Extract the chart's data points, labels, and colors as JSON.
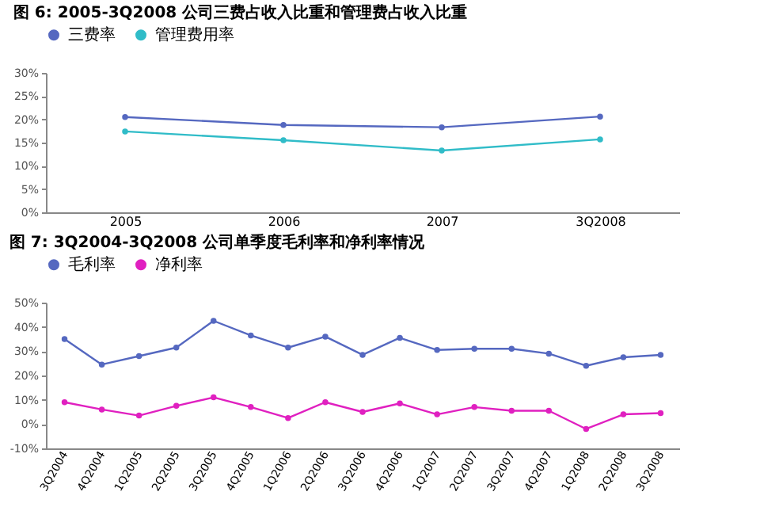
{
  "chart_data": [
    {
      "type": "line",
      "title": "图 6: 2005-3Q2008 公司三费占收入比重和管理费占收入比重",
      "categories": [
        "2005",
        "2006",
        "2007",
        "3Q2008"
      ],
      "series": [
        {
          "name": "三费率",
          "color": "#5568c0",
          "values": [
            20.5,
            18.8,
            18.3,
            20.6
          ]
        },
        {
          "name": "管理费用率",
          "color": "#30bcc8",
          "values": [
            17.4,
            15.5,
            13.3,
            15.7
          ]
        }
      ],
      "ylim": [
        0,
        30
      ],
      "yticks": [
        {
          "value": 0,
          "label": "0%"
        },
        {
          "value": 5,
          "label": "5%"
        },
        {
          "value": 10,
          "label": "10%"
        },
        {
          "value": 15,
          "label": "15%"
        },
        {
          "value": 20,
          "label": "20%"
        },
        {
          "value": 25,
          "label": "25%"
        },
        {
          "value": 30,
          "label": "30%"
        }
      ],
      "legend": "top",
      "marker": "circle",
      "grid": false
    },
    {
      "type": "line",
      "title": "图 7: 3Q2004-3Q2008 公司单季度毛利率和净利率情况",
      "categories": [
        "3Q2004",
        "4Q2004",
        "1Q2005",
        "2Q2005",
        "3Q2005",
        "4Q2005",
        "1Q2006",
        "2Q2006",
        "3Q2006",
        "4Q2006",
        "1Q2007",
        "2Q2007",
        "3Q2007",
        "4Q2007",
        "1Q2008",
        "2Q2008",
        "3Q2008"
      ],
      "series": [
        {
          "name": "毛利率",
          "color": "#5568c0",
          "values": [
            35,
            24.5,
            28,
            31.5,
            42.5,
            36.5,
            31.5,
            36,
            28.5,
            35.5,
            30.5,
            31,
            31,
            29,
            24,
            27.5,
            28.5
          ]
        },
        {
          "name": "净利率",
          "color": "#e020c0",
          "values": [
            9,
            6,
            3.5,
            7.5,
            11,
            7,
            2.5,
            9,
            5,
            8.5,
            4,
            7,
            5.5,
            5.5,
            -2,
            4,
            4.5
          ]
        }
      ],
      "ylim": [
        -10,
        50
      ],
      "yticks": [
        {
          "value": -10,
          "label": "-10%"
        },
        {
          "value": 0,
          "label": "0%"
        },
        {
          "value": 10,
          "label": "10%"
        },
        {
          "value": 20,
          "label": "20%"
        },
        {
          "value": 30,
          "label": "30%"
        },
        {
          "value": 40,
          "label": "40%"
        },
        {
          "value": 50,
          "label": "50%"
        }
      ],
      "legend": "top",
      "marker": "circle",
      "grid": false
    }
  ]
}
